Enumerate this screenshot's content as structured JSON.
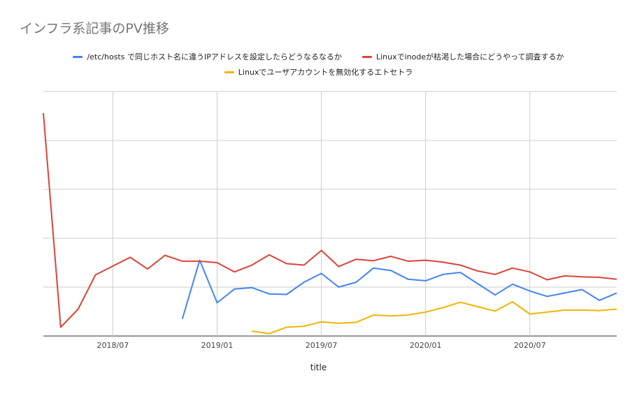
{
  "chart_data": {
    "type": "line",
    "title": "インフラ系記事のPV推移",
    "xlabel": "title",
    "ylabel": "",
    "grid": true,
    "legend_position": "top",
    "x_tick_labels": [
      "2018/07",
      "2019/01",
      "2019/07",
      "2020/01",
      "2020/07"
    ],
    "x_ticks": [
      "2018-07",
      "2019-01",
      "2019-07",
      "2020-01",
      "2020-07"
    ],
    "x_range": [
      "2018-03",
      "2020-12"
    ],
    "y_range": [
      0,
      5
    ],
    "y_tick_labels_visible": false,
    "series": [
      {
        "name": "/etc/hosts で同じホスト名に違うIPアドレスを設定したらどうなるなるか",
        "color": "#4285f4",
        "points": [
          [
            "2018-11",
            0.35
          ],
          [
            "2018-12",
            1.55
          ],
          [
            "2019-01",
            0.68
          ],
          [
            "2019-02",
            0.96
          ],
          [
            "2019-03",
            0.99
          ],
          [
            "2019-04",
            0.86
          ],
          [
            "2019-05",
            0.85
          ],
          [
            "2019-06",
            1.1
          ],
          [
            "2019-07",
            1.28
          ],
          [
            "2019-08",
            1.0
          ],
          [
            "2019-09",
            1.1
          ],
          [
            "2019-10",
            1.39
          ],
          [
            "2019-11",
            1.34
          ],
          [
            "2019-12",
            1.16
          ],
          [
            "2020-01",
            1.13
          ],
          [
            "2020-02",
            1.26
          ],
          [
            "2020-03",
            1.3
          ],
          [
            "2020-04",
            1.07
          ],
          [
            "2020-05",
            0.84
          ],
          [
            "2020-06",
            1.06
          ],
          [
            "2020-07",
            0.92
          ],
          [
            "2020-08",
            0.81
          ],
          [
            "2020-09",
            0.88
          ],
          [
            "2020-10",
            0.95
          ],
          [
            "2020-11",
            0.73
          ],
          [
            "2020-12",
            0.88
          ]
        ]
      },
      {
        "name": "Linuxでinodeが枯渇した場合にどうやって調査するか",
        "color": "#db4437",
        "points": [
          [
            "2018-03",
            4.56
          ],
          [
            "2018-04",
            0.18
          ],
          [
            "2018-05",
            0.55
          ],
          [
            "2018-06",
            1.25
          ],
          [
            "2018-07",
            1.43
          ],
          [
            "2018-08",
            1.61
          ],
          [
            "2018-09",
            1.37
          ],
          [
            "2018-10",
            1.65
          ],
          [
            "2018-11",
            1.53
          ],
          [
            "2018-12",
            1.53
          ],
          [
            "2019-01",
            1.5
          ],
          [
            "2019-02",
            1.31
          ],
          [
            "2019-03",
            1.45
          ],
          [
            "2019-04",
            1.66
          ],
          [
            "2019-05",
            1.48
          ],
          [
            "2019-06",
            1.45
          ],
          [
            "2019-07",
            1.75
          ],
          [
            "2019-08",
            1.42
          ],
          [
            "2019-09",
            1.57
          ],
          [
            "2019-10",
            1.54
          ],
          [
            "2019-11",
            1.63
          ],
          [
            "2019-12",
            1.53
          ],
          [
            "2020-01",
            1.55
          ],
          [
            "2020-02",
            1.51
          ],
          [
            "2020-03",
            1.45
          ],
          [
            "2020-04",
            1.33
          ],
          [
            "2020-05",
            1.26
          ],
          [
            "2020-06",
            1.39
          ],
          [
            "2020-07",
            1.31
          ],
          [
            "2020-08",
            1.15
          ],
          [
            "2020-09",
            1.23
          ],
          [
            "2020-10",
            1.21
          ],
          [
            "2020-11",
            1.2
          ],
          [
            "2020-12",
            1.16
          ]
        ]
      },
      {
        "name": "Linuxでユーザアカウントを無効化するエトセトラ",
        "color": "#f4b400",
        "points": [
          [
            "2019-03",
            0.1
          ],
          [
            "2019-04",
            0.05
          ],
          [
            "2019-05",
            0.18
          ],
          [
            "2019-06",
            0.2
          ],
          [
            "2019-07",
            0.29
          ],
          [
            "2019-08",
            0.26
          ],
          [
            "2019-09",
            0.28
          ],
          [
            "2019-10",
            0.43
          ],
          [
            "2019-11",
            0.41
          ],
          [
            "2019-12",
            0.43
          ],
          [
            "2020-01",
            0.49
          ],
          [
            "2020-02",
            0.58
          ],
          [
            "2020-03",
            0.69
          ],
          [
            "2020-04",
            0.6
          ],
          [
            "2020-05",
            0.51
          ],
          [
            "2020-06",
            0.7
          ],
          [
            "2020-07",
            0.45
          ],
          [
            "2020-08",
            0.49
          ],
          [
            "2020-09",
            0.53
          ],
          [
            "2020-10",
            0.53
          ],
          [
            "2020-11",
            0.52
          ],
          [
            "2020-12",
            0.55
          ]
        ]
      }
    ]
  }
}
